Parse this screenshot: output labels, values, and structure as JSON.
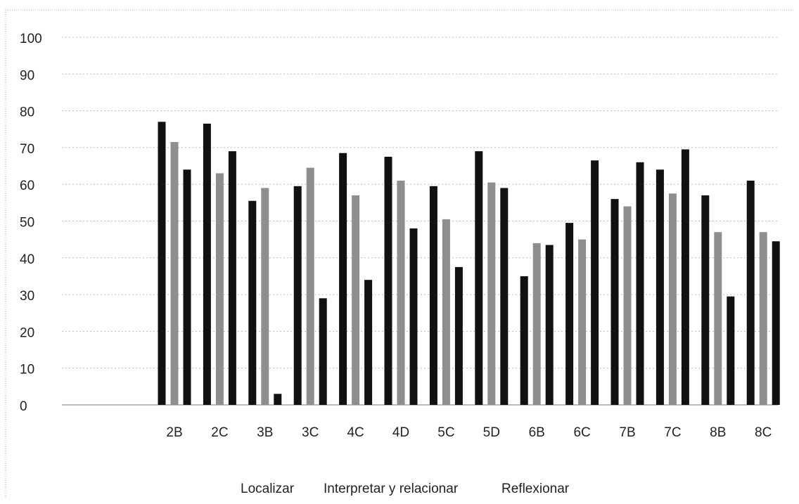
{
  "chart_data": {
    "type": "bar",
    "title": "",
    "xlabel": "",
    "ylabel": "",
    "ylim": [
      0,
      100
    ],
    "yticks": [
      0,
      10,
      20,
      30,
      40,
      50,
      60,
      70,
      80,
      90,
      100
    ],
    "grid": true,
    "legend_position": "bottom",
    "categories": [
      "2B",
      "2C",
      "3B",
      "3C",
      "4C",
      "4D",
      "5C",
      "5D",
      "6B",
      "6C",
      "7B",
      "7C",
      "8B",
      "8C"
    ],
    "series": [
      {
        "name": "Localizar",
        "color": "#111111",
        "values": [
          77,
          76.5,
          55.5,
          59.5,
          68.5,
          67.5,
          59.5,
          69,
          35,
          49.5,
          56,
          64,
          57,
          61
        ]
      },
      {
        "name": "Interpretar y relacionar",
        "color": "#8e8e8e",
        "values": [
          71.5,
          63,
          59,
          64.5,
          57,
          61,
          50.5,
          60.5,
          44,
          45,
          54,
          57.5,
          47,
          47
        ]
      },
      {
        "name": "Reflexionar",
        "color": "#111111",
        "values": [
          64,
          69,
          3,
          29,
          34,
          48,
          37.5,
          59,
          43.5,
          66.5,
          66,
          69.5,
          29.5,
          44.5
        ]
      }
    ]
  }
}
